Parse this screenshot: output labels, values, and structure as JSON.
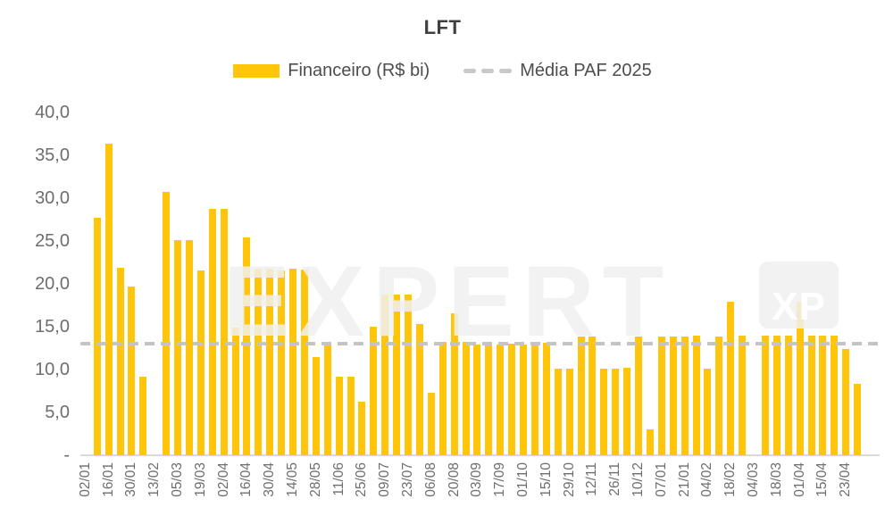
{
  "chart": {
    "title": "LFT",
    "legend": {
      "series_label": "Financeiro (R$ bi)",
      "reference_label": "Média PAF 2025"
    },
    "colors": {
      "bar": "#FFC50B",
      "reference_line": "#C4C4C4",
      "axis_text": "#6E6E6E",
      "title_text": "#404040",
      "baseline": "#D9D9D9",
      "watermark": "#F0F0F0"
    },
    "watermark": {
      "text": "EXPERT",
      "logo": "XP"
    }
  },
  "chart_data": {
    "type": "bar",
    "title": "LFT",
    "series": [
      {
        "name": "Financeiro (R$ bi)",
        "color": "#FFC50B",
        "values": [
          27.7,
          36.4,
          21.9,
          19.7,
          9.2,
          null,
          30.7,
          25.1,
          25.1,
          21.6,
          28.8,
          28.8,
          14.9,
          25.4,
          21.8,
          21.8,
          21.6,
          21.8,
          21.7,
          11.5,
          12.8,
          9.2,
          9.2,
          6.3,
          15.0,
          18.8,
          18.8,
          18.8,
          15.3,
          7.3,
          13.2,
          16.6,
          13.2,
          12.9,
          13.0,
          12.9,
          13.0,
          12.9,
          13.1,
          13.1,
          10.1,
          10.1,
          13.9,
          13.9,
          10.1,
          10.1,
          10.2,
          13.9,
          3.0,
          13.9,
          13.9,
          13.9,
          14.0,
          10.1,
          13.9,
          17.9,
          14.0,
          null,
          14.0,
          14.0,
          14.0,
          17.9,
          14.0,
          14.0,
          14.0,
          12.4,
          8.3
        ]
      }
    ],
    "reference_line": {
      "name": "Média PAF 2025",
      "value": 13.0,
      "style": "dashed",
      "color": "#C4C4C4"
    },
    "xticklabels": [
      "02/01",
      "16/01",
      "30/01",
      "13/02",
      "05/03",
      "19/03",
      "02/04",
      "16/04",
      "30/04",
      "14/05",
      "28/05",
      "11/06",
      "25/06",
      "09/07",
      "23/07",
      "06/08",
      "20/08",
      "03/09",
      "17/09",
      "01/10",
      "15/10",
      "29/10",
      "12/11",
      "26/11",
      "10/12",
      "07/01",
      "21/01",
      "04/02",
      "18/02",
      "04/03",
      "18/03",
      "01/04",
      "15/04",
      "23/04"
    ],
    "xtick_interval": 2,
    "ytick_labels": [
      "40,0",
      "35,0",
      "30,0",
      "25,0",
      "20,0",
      "15,0",
      "10,0",
      "5,0",
      "-"
    ],
    "yticks": [
      40,
      35,
      30,
      25,
      20,
      15,
      10,
      5,
      0
    ],
    "ylim": [
      0,
      40
    ],
    "xlabel": "",
    "ylabel": "",
    "grid": false,
    "legend_position": "top",
    "watermark": "EXPERT XP"
  }
}
